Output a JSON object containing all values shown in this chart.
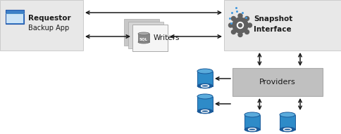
{
  "white_bg": "#ffffff",
  "light_gray": "#e8e8e8",
  "box_gray": "#d8d8d8",
  "med_gray": "#c0c0c0",
  "arrow_color": "#1a1a1a",
  "text_color": "#1a1a1a",
  "blue_main": "#2e8bc8",
  "blue_dark": "#1a5a9a",
  "blue_light": "#5aabdc",
  "gear_color": "#606060",
  "requestor_label": "Requestor",
  "requestor_sub": "Backup App",
  "snapshot_label": "Snapshot",
  "snapshot_sub": "Interface",
  "writers_label": "Writers",
  "providers_label": "Providers",
  "fig_width": 4.84,
  "fig_height": 1.91,
  "dpi": 100
}
